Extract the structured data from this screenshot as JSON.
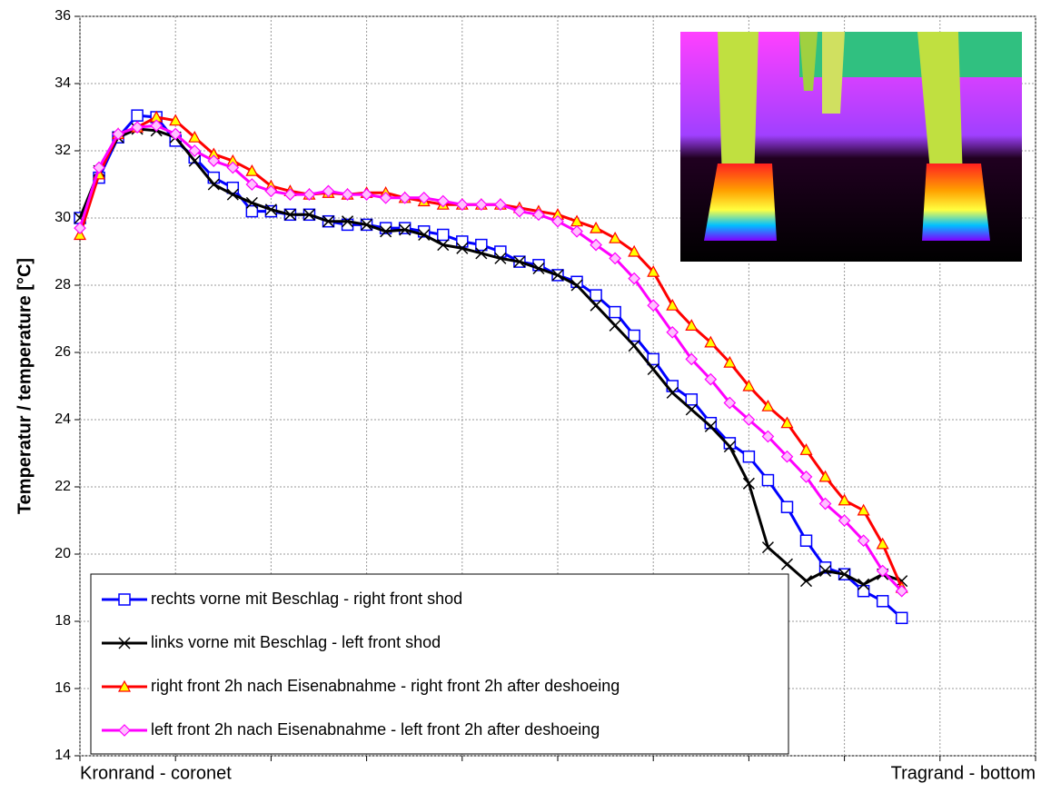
{
  "chart_data": {
    "type": "line",
    "y_label": "Temperatur / temperature [°C]",
    "x_start_label": "Kronrand - coronet",
    "x_end_label": "Tragrand - bottom",
    "x": [
      0,
      1,
      2,
      3,
      4,
      5,
      6,
      7,
      8,
      9,
      10,
      11,
      12,
      13,
      14,
      15,
      16,
      17,
      18,
      19,
      20,
      21,
      22,
      23,
      24,
      25,
      26,
      27,
      28,
      29,
      30,
      31,
      32,
      33,
      34,
      35,
      36,
      37,
      38,
      39,
      40,
      41,
      42,
      43
    ],
    "xlim": [
      0,
      50
    ],
    "xgrid": [
      0,
      5,
      10,
      15,
      20,
      25,
      30,
      35,
      40,
      45,
      50
    ],
    "ylim": [
      14,
      36
    ],
    "yticks": [
      14,
      16,
      18,
      20,
      22,
      24,
      26,
      28,
      30,
      32,
      34,
      36
    ],
    "grid": true,
    "legend": "lower left",
    "series": [
      {
        "name": "rechts vorne mit Beschlag - right front shod",
        "color": "#0000ff",
        "marker": "square",
        "values": [
          30.0,
          31.2,
          32.4,
          33.05,
          33.0,
          32.3,
          31.8,
          31.2,
          30.9,
          30.2,
          30.2,
          30.1,
          30.1,
          29.9,
          29.8,
          29.8,
          29.7,
          29.7,
          29.6,
          29.5,
          29.3,
          29.2,
          29.0,
          28.7,
          28.6,
          28.3,
          28.1,
          27.7,
          27.2,
          26.5,
          25.8,
          25.0,
          24.6,
          23.9,
          23.3,
          22.9,
          22.2,
          21.4,
          20.4,
          19.6,
          19.4,
          18.9,
          18.6,
          18.1
        ]
      },
      {
        "name": "links vorne mit Beschlag - left front shod",
        "color": "#000000",
        "marker": "cross",
        "values": [
          30.0,
          31.4,
          32.4,
          32.65,
          32.6,
          32.4,
          31.7,
          31.0,
          30.7,
          30.45,
          30.25,
          30.1,
          30.1,
          29.9,
          29.9,
          29.8,
          29.6,
          29.65,
          29.5,
          29.2,
          29.1,
          28.95,
          28.8,
          28.7,
          28.5,
          28.3,
          28.0,
          27.4,
          26.8,
          26.2,
          25.5,
          24.8,
          24.3,
          23.8,
          23.2,
          22.1,
          20.2,
          19.7,
          19.2,
          19.5,
          19.4,
          19.1,
          19.4,
          19.2
        ]
      },
      {
        "name": "right front 2h nach Eisenabnahme - right front 2h after deshoeing",
        "color": "#ff0000",
        "marker": "triangle",
        "values": [
          29.5,
          31.3,
          32.5,
          32.7,
          33.0,
          32.9,
          32.4,
          31.9,
          31.7,
          31.4,
          30.95,
          30.8,
          30.7,
          30.75,
          30.7,
          30.75,
          30.75,
          30.6,
          30.5,
          30.4,
          30.4,
          30.4,
          30.4,
          30.3,
          30.2,
          30.1,
          29.9,
          29.7,
          29.4,
          29.0,
          28.4,
          27.4,
          26.8,
          26.3,
          25.7,
          25.0,
          24.4,
          23.9,
          23.1,
          22.3,
          21.6,
          21.3,
          20.3,
          19.0
        ]
      },
      {
        "name": "left front 2h nach Eisenabnahme - left front 2h after deshoeing",
        "color": "#ff00ff",
        "marker": "diamond",
        "values": [
          29.7,
          31.5,
          32.5,
          32.7,
          32.75,
          32.5,
          32.0,
          31.7,
          31.5,
          31.0,
          30.8,
          30.7,
          30.7,
          30.8,
          30.7,
          30.7,
          30.6,
          30.6,
          30.6,
          30.5,
          30.4,
          30.4,
          30.4,
          30.2,
          30.1,
          29.9,
          29.6,
          29.2,
          28.8,
          28.2,
          27.4,
          26.6,
          25.8,
          25.2,
          24.5,
          24.0,
          23.5,
          22.9,
          22.3,
          21.5,
          21.0,
          20.4,
          19.5,
          18.9
        ]
      }
    ]
  }
}
